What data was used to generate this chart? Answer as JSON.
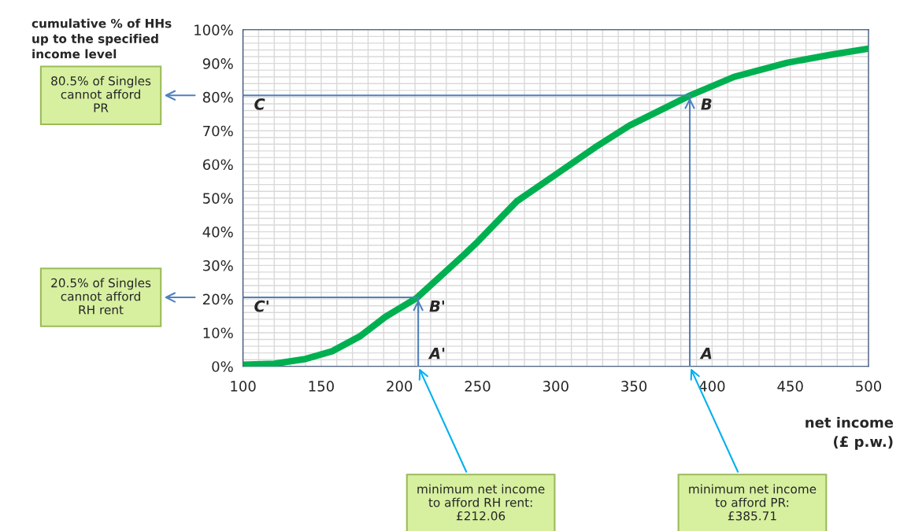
{
  "chart_data": {
    "type": "line",
    "ylabel": "cumulative % of HHs\nup to the specified\nincome level",
    "xlabel": "net income\n(£ p.w.)",
    "xlim": [
      100,
      500
    ],
    "xticks": [
      100,
      150,
      200,
      250,
      300,
      350,
      400,
      450,
      500
    ],
    "ylim": [
      0,
      100
    ],
    "yticks": [
      {
        "value": 0,
        "label": "0%"
      },
      {
        "value": 10,
        "label": "10%"
      },
      {
        "value": 20,
        "label": "20%"
      },
      {
        "value": 30,
        "label": "30%"
      },
      {
        "value": 40,
        "label": "40%"
      },
      {
        "value": 50,
        "label": "50%"
      },
      {
        "value": 60,
        "label": "60%"
      },
      {
        "value": 70,
        "label": "70%"
      },
      {
        "value": 80,
        "label": "80%"
      },
      {
        "value": 90,
        "label": "90%"
      },
      {
        "value": 100,
        "label": "100%"
      }
    ],
    "grid": true,
    "legend": false,
    "marker": "none",
    "line_style": "solid",
    "series": [
      {
        "color": "#00b050",
        "x": [
          100,
          120,
          140,
          157,
          175,
          191,
          211,
          241,
          250,
          275,
          300,
          325,
          347,
          386,
          414,
          448,
          475,
          500
        ],
        "values": [
          0.5,
          0.8,
          2.2,
          4.5,
          9,
          14.7,
          20.3,
          33,
          37,
          49,
          57,
          65,
          71.5,
          80.5,
          86,
          90.2,
          92.5,
          94.4
        ]
      },
      {
        "color": "#4f81bd",
        "x": [
          385.71,
          385.71,
          100
        ],
        "values": [
          0,
          80.5,
          80.5
        ]
      },
      {
        "color": "#4f81bd",
        "x": [
          212.06,
          212.06,
          100
        ],
        "values": [
          0,
          20.5,
          20.5
        ]
      }
    ],
    "annotations": [
      {
        "text": "C",
        "x": 100,
        "y": 80.5
      },
      {
        "text": "B",
        "x": 385.71,
        "y": 80.5
      },
      {
        "text": "C'",
        "x": 100,
        "y": 20.5
      },
      {
        "text": "B'",
        "x": 212.06,
        "y": 20.5
      },
      {
        "text": "A'",
        "x": 212.06,
        "y": 0
      },
      {
        "text": "A",
        "x": 385.71,
        "y": 0
      },
      "80.5% of Singles\ncannot afford\nPR",
      "20.5% of Singles\ncannot afford\nRH rent",
      {
        "text": "minimum net income\nto afford RH rent:\n£212.06",
        "x": 212.06,
        "y": 0
      },
      {
        "text": "minimum net income\nto afford PR:\n£385.71",
        "x": 385.71,
        "y": 0
      }
    ]
  }
}
